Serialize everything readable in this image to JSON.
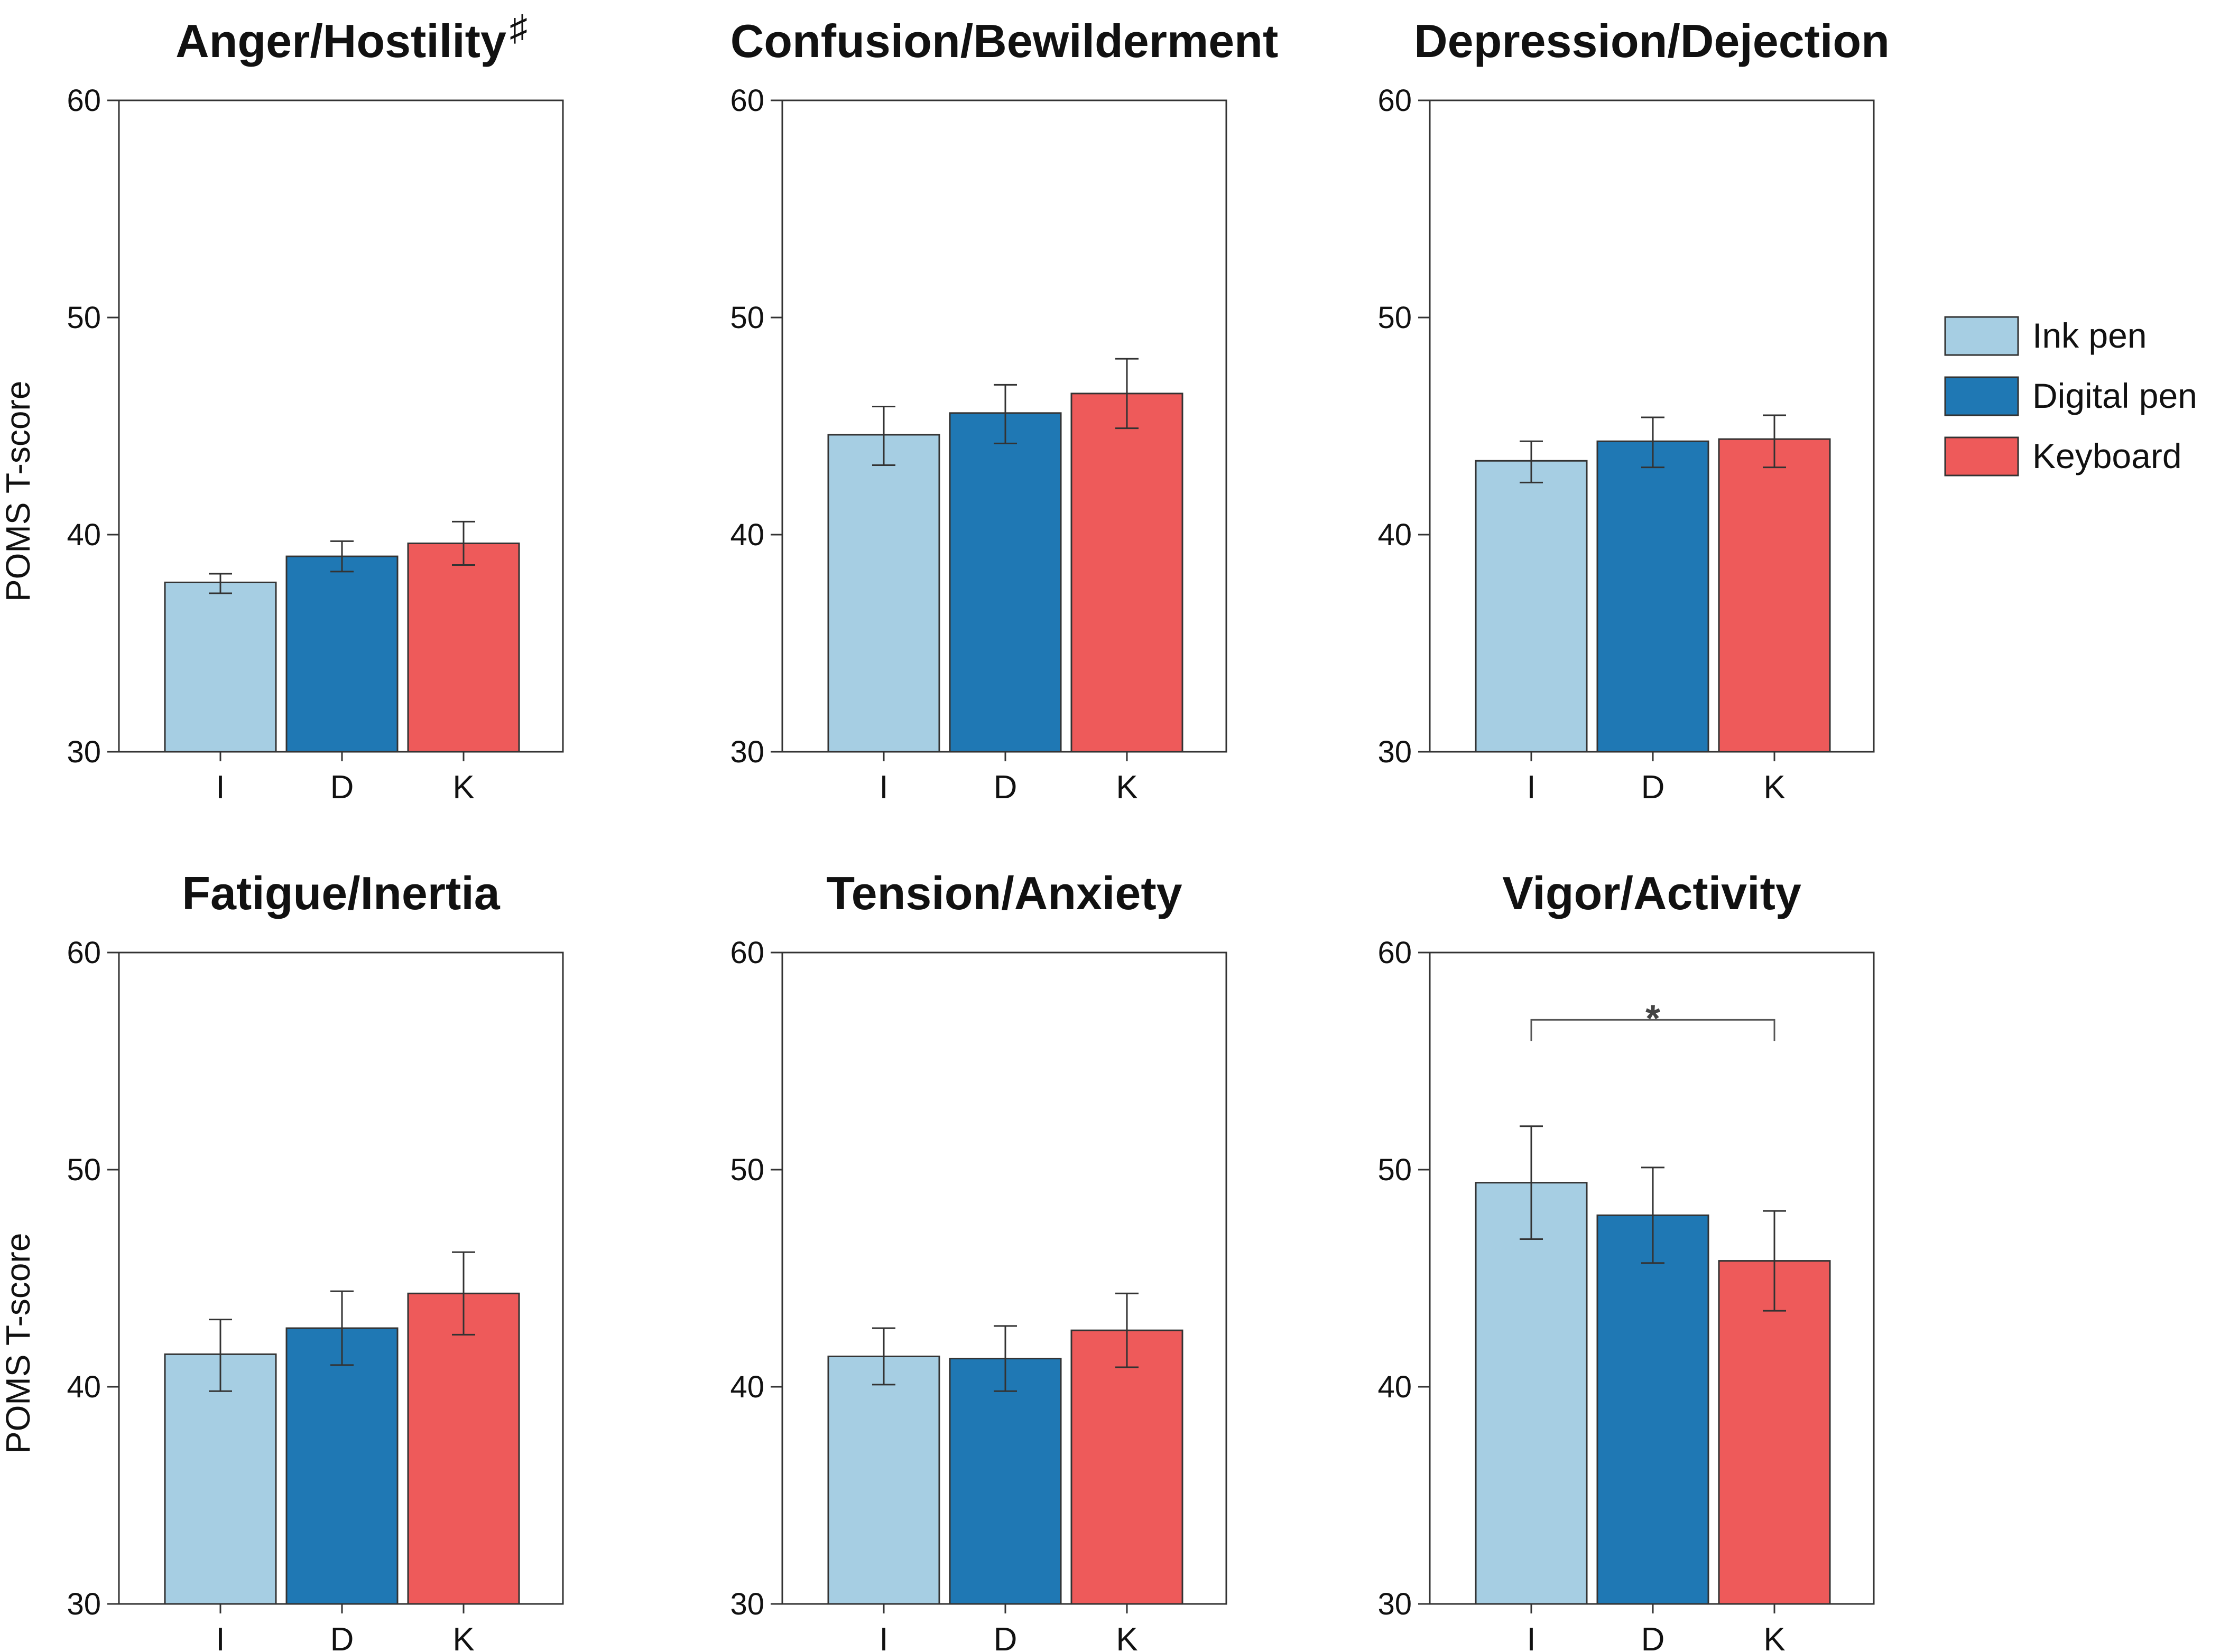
{
  "chart_data": {
    "type": "bar",
    "series_meta": [
      {
        "key": "ink_pen",
        "name": "Ink pen",
        "code": "I",
        "color": "#a6cee3"
      },
      {
        "key": "digital_pen",
        "name": "Digital pen",
        "code": "D",
        "color": "#1f78b4"
      },
      {
        "key": "keyboard",
        "name": "Keyboard",
        "code": "K",
        "color": "#ee5a5a"
      }
    ],
    "categories": [
      "I",
      "D",
      "K"
    ],
    "y_axis": {
      "label": "POMS T-score",
      "ylim": [
        30,
        60
      ],
      "ticks": [
        30,
        40,
        50,
        60
      ]
    },
    "legend": {
      "placement": "right",
      "entries": [
        "Ink pen",
        "Digital pen",
        "Keyboard"
      ]
    },
    "panels": [
      {
        "title": "Anger/Hostility",
        "title_mark": "♯",
        "values": [
          37.8,
          39.0,
          39.6
        ],
        "err_low": [
          37.3,
          38.3,
          38.6
        ],
        "err_high": [
          38.2,
          39.7,
          40.6
        ],
        "significance": null
      },
      {
        "title": "Confusion/Bewilderment",
        "title_mark": "",
        "values": [
          44.6,
          45.6,
          46.5
        ],
        "err_low": [
          43.2,
          44.2,
          44.9
        ],
        "err_high": [
          45.9,
          46.9,
          48.1
        ],
        "significance": null
      },
      {
        "title": "Depression/Dejection",
        "title_mark": "",
        "values": [
          43.4,
          44.3,
          44.4
        ],
        "err_low": [
          42.4,
          43.1,
          43.1
        ],
        "err_high": [
          44.3,
          45.4,
          45.5
        ],
        "significance": null
      },
      {
        "title": "Fatigue/Inertia",
        "title_mark": "",
        "values": [
          41.5,
          42.7,
          44.3
        ],
        "err_low": [
          39.8,
          41.0,
          42.4
        ],
        "err_high": [
          43.1,
          44.4,
          46.2
        ],
        "significance": null
      },
      {
        "title": "Tension/Anxiety",
        "title_mark": "",
        "values": [
          41.4,
          41.3,
          42.6
        ],
        "err_low": [
          40.1,
          39.8,
          40.9
        ],
        "err_high": [
          42.7,
          42.8,
          44.3
        ],
        "significance": null
      },
      {
        "title": "Vigor/Activity",
        "title_mark": "",
        "values": [
          49.4,
          47.9,
          45.8
        ],
        "err_low": [
          46.8,
          45.7,
          43.5
        ],
        "err_high": [
          52.0,
          50.1,
          48.1
        ],
        "significance": {
          "from": "I",
          "to": "K",
          "label": "*",
          "level": 56.9
        }
      }
    ]
  }
}
